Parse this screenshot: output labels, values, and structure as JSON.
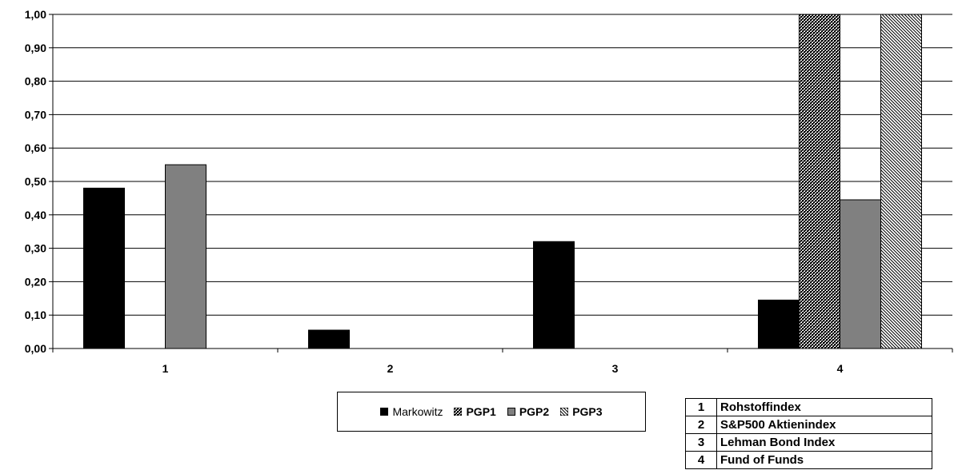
{
  "chart_data": {
    "type": "bar",
    "categories": [
      "1",
      "2",
      "3",
      "4"
    ],
    "series": [
      {
        "name": "Markowitz",
        "values": [
          0.48,
          0.055,
          0.32,
          0.145
        ],
        "color": "#000000",
        "pattern": "solid"
      },
      {
        "name": "PGP1",
        "values": [
          0.0,
          0.0,
          0.0,
          1.0
        ],
        "color": "#000000",
        "pattern": "dots"
      },
      {
        "name": "PGP2",
        "values": [
          0.55,
          0.0,
          0.0,
          0.445
        ],
        "color": "#808080",
        "pattern": "solid"
      },
      {
        "name": "PGP3",
        "values": [
          0.0,
          0.0,
          0.0,
          1.0
        ],
        "color": "#000000",
        "pattern": "diagonal"
      }
    ],
    "ylim": [
      0,
      1.0
    ],
    "yticks": [
      "0,00",
      "0,10",
      "0,20",
      "0,30",
      "0,40",
      "0,50",
      "0,60",
      "0,70",
      "0,80",
      "0,90",
      "1,00"
    ],
    "grid": true,
    "legend_position": "bottom"
  },
  "key_table": [
    {
      "num": "1",
      "name": "Rohstoffindex"
    },
    {
      "num": "2",
      "name": "S&P500 Aktienindex"
    },
    {
      "num": "3",
      "name": "Lehman Bond Index"
    },
    {
      "num": "4",
      "name": "Fund of Funds"
    }
  ]
}
